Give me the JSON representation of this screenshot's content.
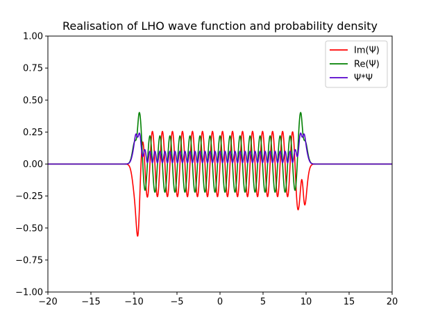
{
  "chart_data": {
    "type": "line",
    "title": "Realisation of LHO wave function and probability density",
    "xlabel": "",
    "ylabel": "",
    "xlim": [
      -20,
      20
    ],
    "ylim": [
      -1.0,
      1.0
    ],
    "x_ticks": [
      "−20",
      "−15",
      "−10",
      "−5",
      "0",
      "5",
      "10",
      "15",
      "20"
    ],
    "y_ticks": [
      "−1.00",
      "−0.75",
      "−0.50",
      "−0.25",
      "0.00",
      "0.25",
      "0.50",
      "0.75",
      "1.00"
    ],
    "x_tick_values": [
      -20,
      -15,
      -10,
      -5,
      0,
      5,
      10,
      15,
      20
    ],
    "y_tick_values": [
      -1.0,
      -0.75,
      -0.5,
      -0.25,
      0.0,
      0.25,
      0.5,
      0.75,
      1.0
    ],
    "grid": false,
    "legend_position": "top-right",
    "series": [
      {
        "name": "Im(Ψ)",
        "color": "#ff0000",
        "envelope_peak": 0.3,
        "edge_extreme": -0.37,
        "edge_position": 9.7
      },
      {
        "name": "Re(Ψ)",
        "color": "#008000",
        "envelope_peak": 0.22,
        "edge_extreme": 0.27,
        "edge_position": 9.7
      },
      {
        "name": "Ψ*Ψ",
        "color": "#5500cc",
        "envelope_peak": 0.1,
        "edge_extreme": 0.21,
        "edge_position": 9.7
      }
    ],
    "oscillation_extent": [
      -10,
      10
    ]
  }
}
